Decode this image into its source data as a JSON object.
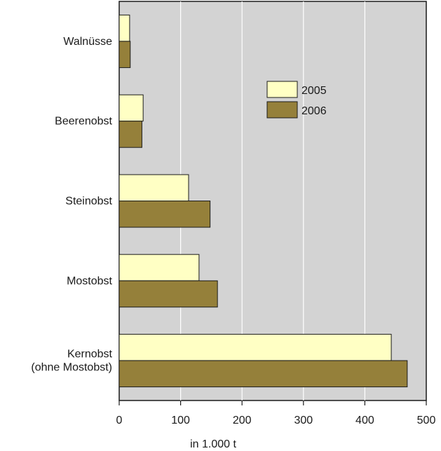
{
  "chart_data": {
    "type": "bar",
    "orientation": "horizontal",
    "categories": [
      "Walnüsse",
      "Beerenobst",
      "Steinobst",
      "Mostobst",
      "Kernobst (ohne Mostobst)"
    ],
    "category_lines": [
      [
        "Walnüsse"
      ],
      [
        "Beerenobst"
      ],
      [
        "Steinobst"
      ],
      [
        "Mostobst"
      ],
      [
        "Kernobst",
        "(ohne Mostobst)"
      ]
    ],
    "series": [
      {
        "name": "2005",
        "values": [
          17,
          39,
          113,
          130,
          443
        ],
        "color": "#ffffc4"
      },
      {
        "name": "2006",
        "values": [
          18,
          37,
          148,
          160,
          469
        ],
        "color": "#95803a"
      }
    ],
    "xlabel": "in 1.000 t",
    "xlim": [
      0,
      500
    ],
    "xticks": [
      "0",
      "100",
      "200",
      "300",
      "400",
      "500"
    ],
    "grid": true,
    "plot_background": "#d3d3d3",
    "legend_position": "upper-right"
  }
}
